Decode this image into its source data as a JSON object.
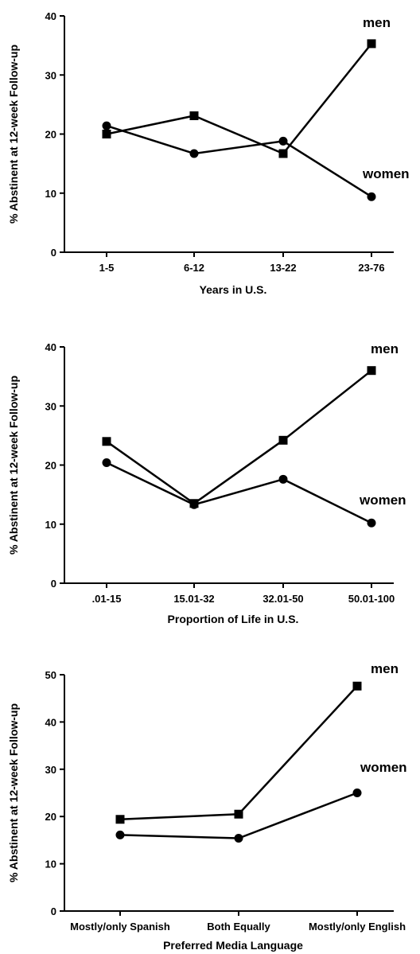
{
  "chart_data": [
    {
      "type": "line",
      "xlabel": "Years in U.S.",
      "ylabel": "% Abstinent at 12-week Follow-up",
      "categories": [
        "1-5",
        "6-12",
        "13-22",
        "23-76"
      ],
      "ylim": [
        0,
        40
      ],
      "yticks": [
        0,
        10,
        20,
        30,
        40
      ],
      "grid": false,
      "series": [
        {
          "name": "men",
          "marker": "square",
          "values": [
            20.0,
            23.1,
            16.7,
            35.3
          ]
        },
        {
          "name": "women",
          "marker": "circle",
          "values": [
            21.4,
            16.7,
            18.8,
            9.4
          ]
        }
      ]
    },
    {
      "type": "line",
      "xlabel": "Proportion of Life in U.S.",
      "ylabel": "% Abstinent at 12-week Follow-up",
      "categories": [
        ".01-15",
        "15.01-32",
        "32.01-50",
        "50.01-100"
      ],
      "ylim": [
        0,
        40
      ],
      "yticks": [
        0,
        10,
        20,
        30,
        40
      ],
      "grid": false,
      "series": [
        {
          "name": "men",
          "marker": "square",
          "values": [
            24.0,
            13.5,
            24.2,
            36.0
          ]
        },
        {
          "name": "women",
          "marker": "circle",
          "values": [
            20.4,
            13.3,
            17.6,
            10.2
          ]
        }
      ]
    },
    {
      "type": "line",
      "xlabel": "Preferred Media Language",
      "ylabel": "% Abstinent at 12-week Follow-up",
      "categories": [
        "Mostly/only Spanish",
        "Both Equally",
        "Mostly/only English"
      ],
      "ylim": [
        0,
        50
      ],
      "yticks": [
        0,
        10,
        20,
        30,
        40,
        50
      ],
      "grid": false,
      "series": [
        {
          "name": "men",
          "marker": "square",
          "values": [
            19.4,
            20.5,
            47.6
          ]
        },
        {
          "name": "women",
          "marker": "circle",
          "values": [
            16.1,
            15.4,
            25.0
          ]
        }
      ]
    }
  ]
}
